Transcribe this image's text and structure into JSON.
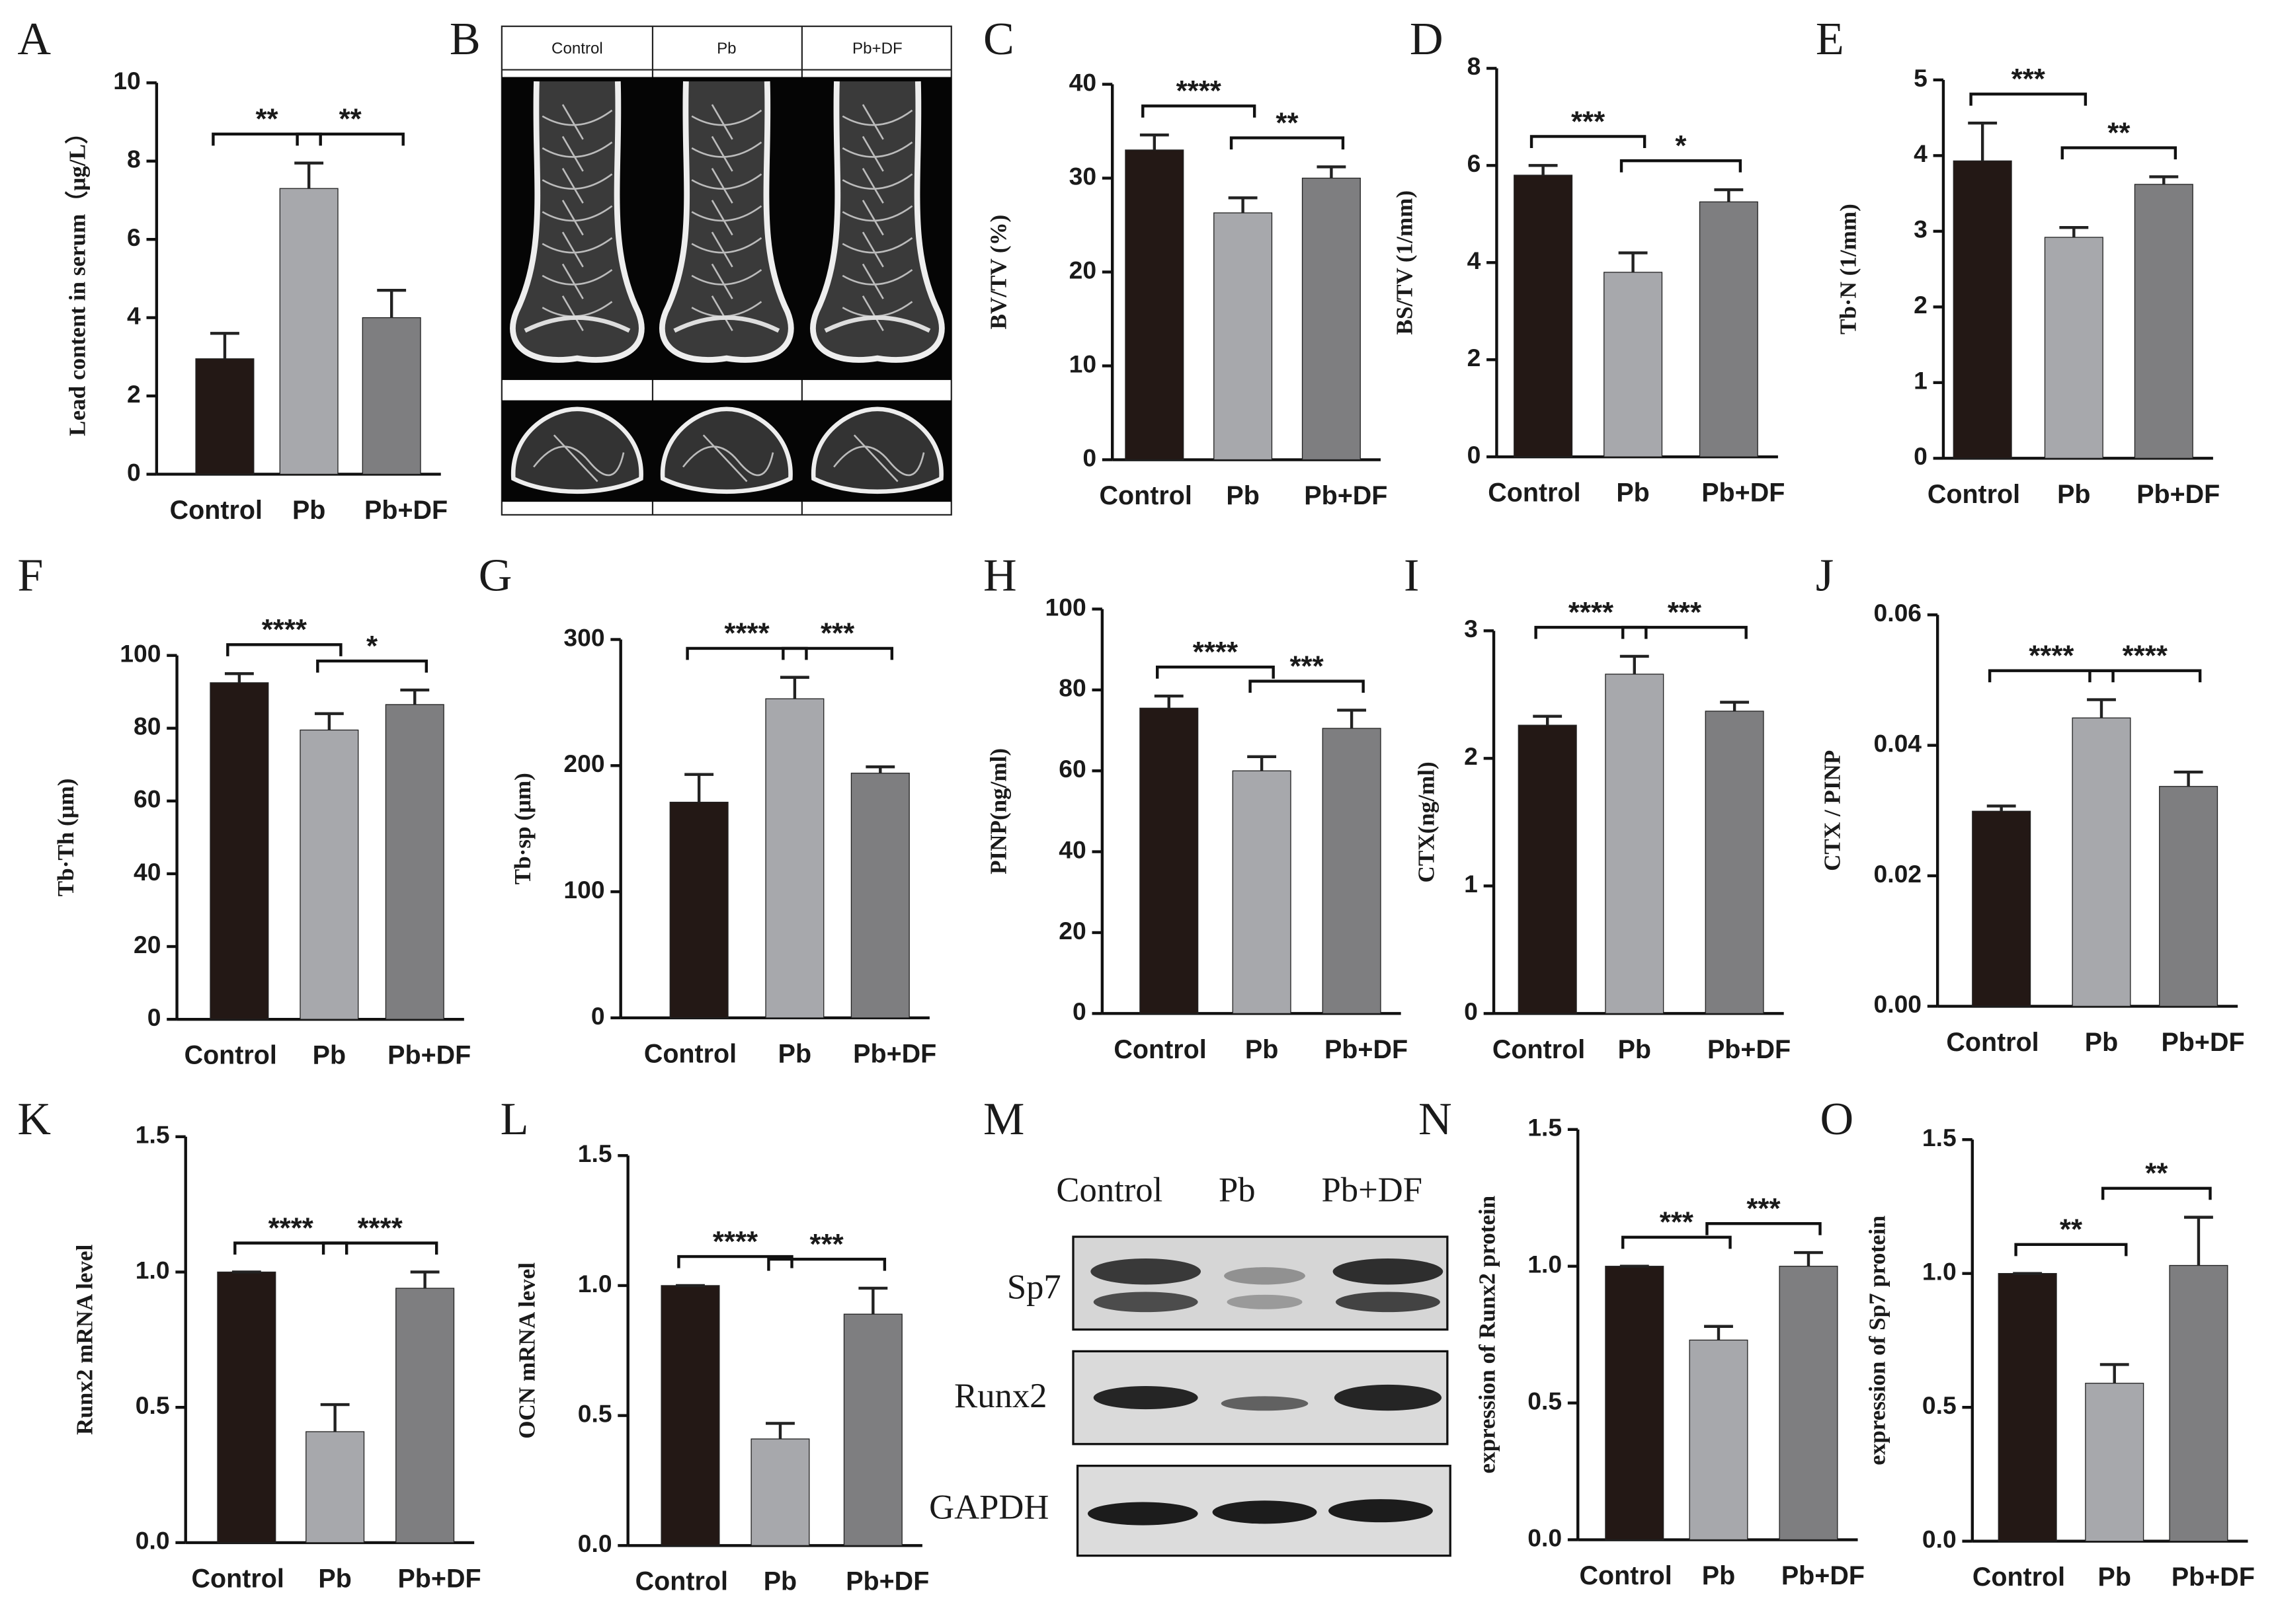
{
  "chart_data": [
    {
      "type": "bar",
      "panel": "A",
      "ylabel": "Lead content in serum（μg/L）",
      "categories": [
        "Control",
        "Pb",
        "Pb+DF"
      ],
      "values": [
        2.95,
        7.3,
        4.0
      ],
      "errors": [
        0.65,
        0.65,
        0.7
      ],
      "colors": [
        "#231815",
        "#a7a8ac",
        "#7e7e80"
      ],
      "annotations": [
        "**",
        "**"
      ],
      "ylim": [
        0,
        10
      ],
      "yticks": [
        0,
        2,
        4,
        6,
        8,
        10
      ]
    },
    {
      "type": "bar",
      "panel": "C",
      "ylabel": "BV/TV (%)",
      "categories": [
        "Control",
        "Pb",
        "Pb+DF"
      ],
      "values": [
        33,
        26.3,
        30
      ],
      "errors": [
        1.6,
        1.6,
        1.2
      ],
      "colors": [
        "#231815",
        "#a7a8ac",
        "#7e7e80"
      ],
      "annotations": [
        "****",
        "**"
      ],
      "ylim": [
        0,
        40
      ],
      "yticks": [
        0,
        10,
        20,
        30,
        40
      ]
    },
    {
      "type": "bar",
      "panel": "D",
      "ylabel": "BS/TV (1/mm)",
      "categories": [
        "Control",
        "Pb",
        "Pb+DF"
      ],
      "values": [
        5.8,
        3.8,
        5.25
      ],
      "errors": [
        0.2,
        0.4,
        0.25
      ],
      "colors": [
        "#231815",
        "#a7a8ac",
        "#7e7e80"
      ],
      "annotations": [
        "***",
        "*"
      ],
      "ylim": [
        0,
        8
      ],
      "yticks": [
        0,
        2,
        4,
        6,
        8
      ]
    },
    {
      "type": "bar",
      "panel": "E",
      "ylabel": "Tb·N (1/mm)",
      "categories": [
        "Control",
        "Pb",
        "Pb+DF"
      ],
      "values": [
        3.93,
        2.92,
        3.62
      ],
      "errors": [
        0.5,
        0.13,
        0.1
      ],
      "colors": [
        "#231815",
        "#a7a8ac",
        "#7e7e80"
      ],
      "annotations": [
        "***",
        "**"
      ],
      "ylim": [
        0,
        5
      ],
      "yticks": [
        0,
        1,
        2,
        3,
        4,
        5
      ]
    },
    {
      "type": "bar",
      "panel": "F",
      "ylabel": "Tb·Th (μm)",
      "categories": [
        "Control",
        "Pb",
        "Pb+DF"
      ],
      "values": [
        92.5,
        79.5,
        86.5
      ],
      "errors": [
        2.5,
        4.5,
        4
      ],
      "colors": [
        "#231815",
        "#a7a8ac",
        "#7e7e80"
      ],
      "annotations": [
        "****",
        "*"
      ],
      "ylim": [
        0,
        100
      ],
      "yticks": [
        0,
        20,
        40,
        60,
        80,
        100
      ]
    },
    {
      "type": "bar",
      "panel": "G",
      "ylabel": "Tb·sp (μm)",
      "categories": [
        "Control",
        "Pb",
        "Pb+DF"
      ],
      "values": [
        171,
        253,
        194
      ],
      "errors": [
        22,
        17,
        5
      ],
      "colors": [
        "#231815",
        "#a7a8ac",
        "#7e7e80"
      ],
      "annotations": [
        "****",
        "***"
      ],
      "ylim": [
        0,
        300
      ],
      "yticks": [
        0,
        100,
        200,
        300
      ]
    },
    {
      "type": "bar",
      "panel": "H",
      "ylabel": "PINP(ng/ml)",
      "categories": [
        "Control",
        "Pb",
        "Pb+DF"
      ],
      "values": [
        75.5,
        60,
        70.5
      ],
      "errors": [
        3,
        3.5,
        4.5
      ],
      "colors": [
        "#231815",
        "#a7a8ac",
        "#7e7e80"
      ],
      "annotations": [
        "****",
        "***"
      ],
      "ylim": [
        0,
        100
      ],
      "yticks": [
        0,
        20,
        40,
        60,
        80,
        100
      ]
    },
    {
      "type": "bar",
      "panel": "I",
      "ylabel": "CTX(ng/ml)",
      "categories": [
        "Control",
        "Pb",
        "Pb+DF"
      ],
      "values": [
        2.26,
        2.66,
        2.37
      ],
      "errors": [
        0.07,
        0.14,
        0.07
      ],
      "colors": [
        "#231815",
        "#a7a8ac",
        "#7e7e80"
      ],
      "annotations": [
        "****",
        "***"
      ],
      "ylim": [
        0,
        3
      ],
      "yticks": [
        0,
        1,
        2,
        3
      ]
    },
    {
      "type": "bar",
      "panel": "J",
      "ylabel": "CTX / PINP",
      "categories": [
        "Control",
        "Pb",
        "Pb+DF"
      ],
      "values": [
        0.0299,
        0.0442,
        0.0337
      ],
      "errors": [
        0.0008,
        0.0028,
        0.0022
      ],
      "colors": [
        "#231815",
        "#a7a8ac",
        "#7e7e80"
      ],
      "annotations": [
        "****",
        "****"
      ],
      "ylim": [
        0,
        0.06
      ],
      "yticks": [
        {
          "value": 0,
          "label": "0.00"
        },
        0.02,
        0.04,
        0.06
      ]
    },
    {
      "type": "bar",
      "panel": "K",
      "ylabel": "Runx2 mRNA level",
      "categories": [
        "Control",
        "Pb",
        "Pb+DF"
      ],
      "values": [
        1.0,
        0.41,
        0.94
      ],
      "errors": [
        0,
        0.1,
        0.06
      ],
      "colors": [
        "#231815",
        "#a7a8ac",
        "#7e7e80"
      ],
      "annotations": [
        "****",
        "****"
      ],
      "ylim": [
        0,
        1.5
      ],
      "yticks": [
        {
          "value": 0,
          "label": "0.0"
        },
        0.5,
        {
          "value": 1,
          "label": "1.0"
        },
        1.5
      ]
    },
    {
      "type": "bar",
      "panel": "L",
      "ylabel": "OCN mRNA level",
      "categories": [
        "Control",
        "Pb",
        "Pb+DF"
      ],
      "values": [
        1.0,
        0.41,
        0.89
      ],
      "errors": [
        0,
        0.06,
        0.1
      ],
      "colors": [
        "#231815",
        "#a7a8ac",
        "#7e7e80"
      ],
      "annotations": [
        "****",
        "***"
      ],
      "ylim": [
        0,
        1.5
      ],
      "yticks": [
        {
          "value": 0,
          "label": "0.0"
        },
        0.5,
        {
          "value": 1,
          "label": "1.0"
        },
        1.5
      ]
    },
    {
      "type": "bar",
      "panel": "N",
      "ylabel": "expression of Runx2 protein",
      "categories": [
        "Control",
        "Pb",
        "Pb+DF"
      ],
      "values": [
        1.0,
        0.73,
        1.0
      ],
      "errors": [
        0,
        0.05,
        0.05
      ],
      "colors": [
        "#231815",
        "#a7a8ac",
        "#7e7e80"
      ],
      "annotations": [
        "***",
        "***"
      ],
      "ylim": [
        0,
        1.5
      ],
      "yticks": [
        {
          "value": 0,
          "label": "0.0"
        },
        0.5,
        {
          "value": 1,
          "label": "1.0"
        },
        1.5
      ]
    },
    {
      "type": "bar",
      "panel": "O",
      "ylabel": "expression of Sp7 protein",
      "categories": [
        "Control",
        "Pb",
        "Pb+DF"
      ],
      "values": [
        1.0,
        0.59,
        1.03
      ],
      "errors": [
        0,
        0.07,
        0.18
      ],
      "colors": [
        "#231815",
        "#a7a8ac",
        "#7e7e80"
      ],
      "annotations": [
        "**",
        "**"
      ],
      "ylim": [
        0,
        1.5
      ],
      "yticks": [
        {
          "value": 0,
          "label": "0.0"
        },
        0.5,
        {
          "value": 1,
          "label": "1.0"
        },
        1.5
      ]
    }
  ],
  "image_panels": [
    {
      "panel": "B",
      "columns": [
        "Control",
        "Pb",
        "Pb+DF"
      ]
    },
    {
      "panel": "M",
      "columns": [
        "Control",
        "Pb",
        "Pb+DF"
      ],
      "rows": [
        "Sp7",
        "Runx2",
        "GAPDH"
      ]
    }
  ]
}
